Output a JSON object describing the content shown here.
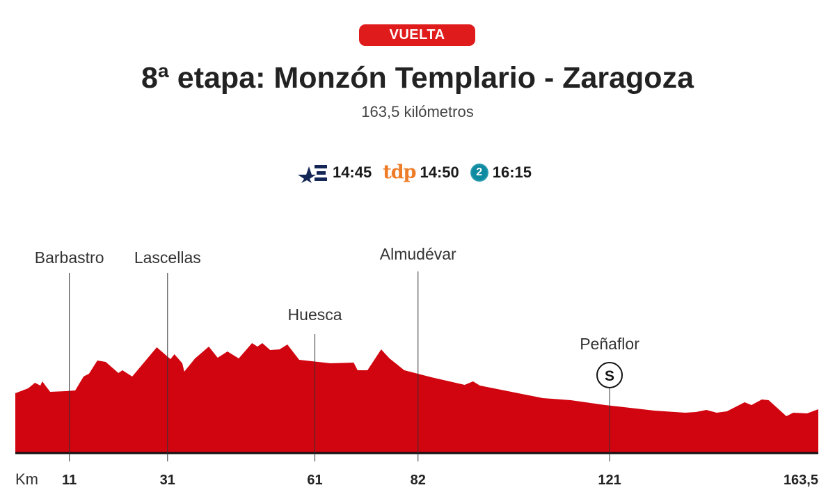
{
  "header": {
    "badge": "VUELTA",
    "title": "8ª etapa: Monzón Templario - Zaragoza",
    "subtitle": "163,5 kilómetros"
  },
  "broadcast": [
    {
      "channel": "eurosport",
      "icon": "eurosport-logo-icon",
      "time": "14:45"
    },
    {
      "channel": "tdp",
      "label": "tdp",
      "time": "14:50"
    },
    {
      "channel": "la2",
      "label": "2",
      "icon": "la2-logo-icon",
      "time": "16:15"
    }
  ],
  "colors": {
    "accent": "#e01b1b",
    "profile": "#d1050f",
    "baseline": "#111111",
    "tdp": "#ee7d2a",
    "la2": "#0e8aa0",
    "eurosport": "#142656"
  },
  "chart_data": {
    "type": "area",
    "title": "",
    "xlabel": "Km",
    "ylabel": "",
    "xlim": [
      0,
      163.5
    ],
    "y_scale": "relative (no axis printed)",
    "grid": false,
    "x_ticks": [
      {
        "value": 11,
        "label": "11"
      },
      {
        "value": 31,
        "label": "31"
      },
      {
        "value": 61,
        "label": "61"
      },
      {
        "value": 82,
        "label": "82"
      },
      {
        "value": 121,
        "label": "121"
      },
      {
        "value": 163.5,
        "label": "163,5"
      }
    ],
    "profile": [
      [
        0,
        43
      ],
      [
        2.6,
        46.5
      ],
      [
        4.0,
        50.5
      ],
      [
        5.1,
        48.5
      ],
      [
        5.5,
        51.5
      ],
      [
        7.1,
        44
      ],
      [
        10.3,
        44.5
      ],
      [
        12.2,
        45
      ],
      [
        13.9,
        55
      ],
      [
        15.0,
        57
      ],
      [
        16.7,
        66.5
      ],
      [
        18.4,
        65.5
      ],
      [
        21.0,
        57.5
      ],
      [
        21.8,
        59.5
      ],
      [
        23.8,
        55
      ],
      [
        28.8,
        76
      ],
      [
        31.6,
        67.5
      ],
      [
        32.4,
        71
      ],
      [
        34.0,
        64.5
      ],
      [
        34.4,
        58.5
      ],
      [
        36.6,
        68
      ],
      [
        39.4,
        76.5
      ],
      [
        41.2,
        68.5
      ],
      [
        43.2,
        73
      ],
      [
        45.5,
        68
      ],
      [
        48.2,
        79
      ],
      [
        49.3,
        76.5
      ],
      [
        50.3,
        79
      ],
      [
        51.9,
        74
      ],
      [
        53.8,
        74.5
      ],
      [
        55.4,
        78
      ],
      [
        57.8,
        67
      ],
      [
        64.2,
        64.5
      ],
      [
        68.9,
        65
      ],
      [
        69.7,
        59.5
      ],
      [
        71.7,
        59.5
      ],
      [
        74.5,
        74.5
      ],
      [
        76.2,
        68
      ],
      [
        79.2,
        59.5
      ],
      [
        84.7,
        54.5
      ],
      [
        91.5,
        49
      ],
      [
        93.2,
        51.5
      ],
      [
        94.6,
        48.5
      ],
      [
        107.4,
        39.5
      ],
      [
        113.1,
        38
      ],
      [
        120.1,
        34.5
      ],
      [
        130.1,
        30.5
      ],
      [
        136.4,
        29
      ],
      [
        138.6,
        29.5
      ],
      [
        140.7,
        31
      ],
      [
        142.8,
        29
      ],
      [
        144.9,
        30
      ],
      [
        148.5,
        36.5
      ],
      [
        149.9,
        34.5
      ],
      [
        152.0,
        38.5
      ],
      [
        153.4,
        38
      ],
      [
        157.0,
        26.5
      ],
      [
        158.4,
        29
      ],
      [
        161.2,
        28.5
      ],
      [
        163.5,
        31.5
      ]
    ],
    "annotations": [
      {
        "km": 11,
        "label": "Barbastro"
      },
      {
        "km": 31,
        "label": "Lascellas"
      },
      {
        "km": 61,
        "label": "Huesca"
      },
      {
        "km": 82,
        "label": "Almudévar"
      },
      {
        "km": 121,
        "label": "Peñaflor",
        "sprint": "S"
      }
    ]
  }
}
